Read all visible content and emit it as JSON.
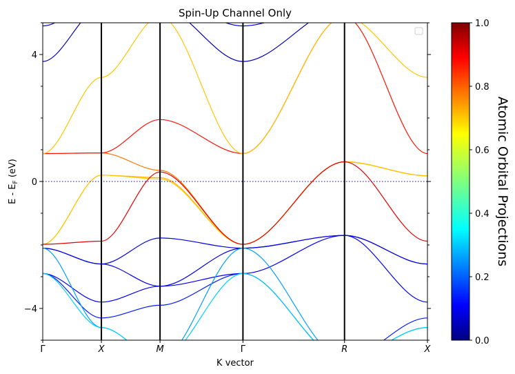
{
  "chart_data": {
    "type": "line",
    "title": "Spin-Up Channel Only",
    "xlabel": "K vector",
    "ylabel": "E - E",
    "ylabel_sub": "F",
    "ylabel_unit": " (eV)",
    "ylim": [
      -5.0,
      5.0
    ],
    "yticks": [
      -4,
      0,
      4
    ],
    "ytick_labels": [
      "−4",
      "0",
      "4"
    ],
    "kpoints": [
      {
        "label": "Γ",
        "x": 0.0
      },
      {
        "label": "X",
        "x": 0.5
      },
      {
        "label": "M",
        "x": 1.0
      },
      {
        "label": "Γ",
        "x": 1.707
      },
      {
        "label": "R",
        "x": 2.573
      },
      {
        "label": "X",
        "x": 3.28
      }
    ],
    "fermi_level": 0,
    "legend": "top-right (empty)",
    "colorbar": {
      "label": "Atomic Orbital Projections",
      "min": 0.0,
      "max": 1.0,
      "ticks": [
        0.0,
        0.2,
        0.4,
        0.6,
        0.8,
        1.0
      ],
      "tick_labels": [
        "0.0",
        "0.2",
        "0.4",
        "0.6",
        "0.8",
        "1.0"
      ],
      "colormap": "jet"
    },
    "series": [
      {
        "proj": 0.76,
        "points": [
          [
            0,
            0.88
          ],
          [
            0.5,
            0.9
          ],
          [
            1.0,
            0.35
          ],
          [
            1.707,
            -1.98
          ],
          [
            2.573,
            0.62
          ],
          [
            3.28,
            0.18
          ]
        ]
      },
      {
        "proj": 0.7,
        "points": [
          [
            0,
            -1.98
          ],
          [
            0.5,
            0.2
          ],
          [
            1.0,
            0.12
          ],
          [
            1.707,
            -1.98
          ],
          [
            2.573,
            0.62
          ],
          [
            3.28,
            0.18
          ]
        ]
      },
      {
        "proj": 0.68,
        "points": [
          [
            0,
            -1.98
          ],
          [
            0.5,
            0.2
          ],
          [
            1.0,
            0.08
          ],
          [
            1.707,
            -1.98
          ],
          [
            2.573,
            0.62
          ],
          [
            3.28,
            0.18
          ]
        ]
      },
      {
        "proj": 0.9,
        "points": [
          [
            0,
            -1.98
          ],
          [
            0.5,
            -1.88
          ],
          [
            1.0,
            0.3
          ],
          [
            1.707,
            -1.98
          ],
          [
            2.573,
            0.62
          ],
          [
            3.28,
            -1.88
          ]
        ]
      },
      {
        "proj": 0.86,
        "points": [
          [
            0,
            0.88
          ],
          [
            0.5,
            0.9
          ],
          [
            1.0,
            1.95
          ],
          [
            1.707,
            0.88
          ],
          [
            2.573,
            5.2
          ],
          [
            3.28,
            0.88
          ]
        ]
      },
      {
        "proj": 0.68,
        "points": [
          [
            0,
            0.88
          ],
          [
            0.5,
            3.28
          ],
          [
            1.0,
            5.2
          ],
          [
            1.707,
            0.88
          ],
          [
            2.573,
            5.2
          ],
          [
            3.28,
            3.28
          ]
        ]
      },
      {
        "proj": 0.05,
        "points": [
          [
            0,
            3.78
          ],
          [
            0.5,
            5.5
          ],
          [
            1.0,
            5.5
          ],
          [
            1.707,
            3.78
          ],
          [
            2.573,
            5.5
          ],
          [
            3.28,
            5.5
          ]
        ]
      },
      {
        "proj": 0.08,
        "points": [
          [
            0,
            4.9
          ],
          [
            0.5,
            5.8
          ],
          [
            1.0,
            5.8
          ],
          [
            1.707,
            4.9
          ],
          [
            2.573,
            5.8
          ],
          [
            3.28,
            5.8
          ]
        ]
      },
      {
        "proj": 0.1,
        "points": [
          [
            0,
            -2.1
          ],
          [
            0.5,
            -2.6
          ],
          [
            1.0,
            -1.78
          ],
          [
            1.707,
            -2.1
          ],
          [
            2.573,
            -1.7
          ],
          [
            3.28,
            -2.6
          ]
        ]
      },
      {
        "proj": 0.1,
        "points": [
          [
            0,
            -2.1
          ],
          [
            0.5,
            -2.6
          ],
          [
            1.0,
            -3.3
          ],
          [
            1.707,
            -2.1
          ],
          [
            2.573,
            -1.7
          ],
          [
            3.28,
            -2.6
          ]
        ]
      },
      {
        "proj": 0.12,
        "points": [
          [
            0,
            -2.9
          ],
          [
            0.5,
            -3.8
          ],
          [
            1.0,
            -3.3
          ],
          [
            1.707,
            -2.9
          ],
          [
            2.573,
            -1.7
          ],
          [
            3.28,
            -3.8
          ]
        ]
      },
      {
        "proj": 0.15,
        "points": [
          [
            0,
            -2.9
          ],
          [
            0.5,
            -4.3
          ],
          [
            1.0,
            -3.9
          ],
          [
            1.707,
            -2.9
          ],
          [
            2.573,
            -5.6
          ],
          [
            3.28,
            -4.3
          ]
        ]
      },
      {
        "proj": 0.28,
        "points": [
          [
            0,
            -2.1
          ],
          [
            0.5,
            -4.6
          ],
          [
            1.0,
            -5.6
          ],
          [
            1.707,
            -2.1
          ],
          [
            2.573,
            -5.6
          ],
          [
            3.28,
            -4.6
          ]
        ]
      },
      {
        "proj": 0.33,
        "points": [
          [
            0,
            -2.9
          ],
          [
            0.5,
            -4.6
          ],
          [
            1.0,
            -5.6
          ],
          [
            1.707,
            -2.9
          ],
          [
            2.573,
            -5.6
          ],
          [
            3.28,
            -4.6
          ]
        ]
      }
    ]
  }
}
